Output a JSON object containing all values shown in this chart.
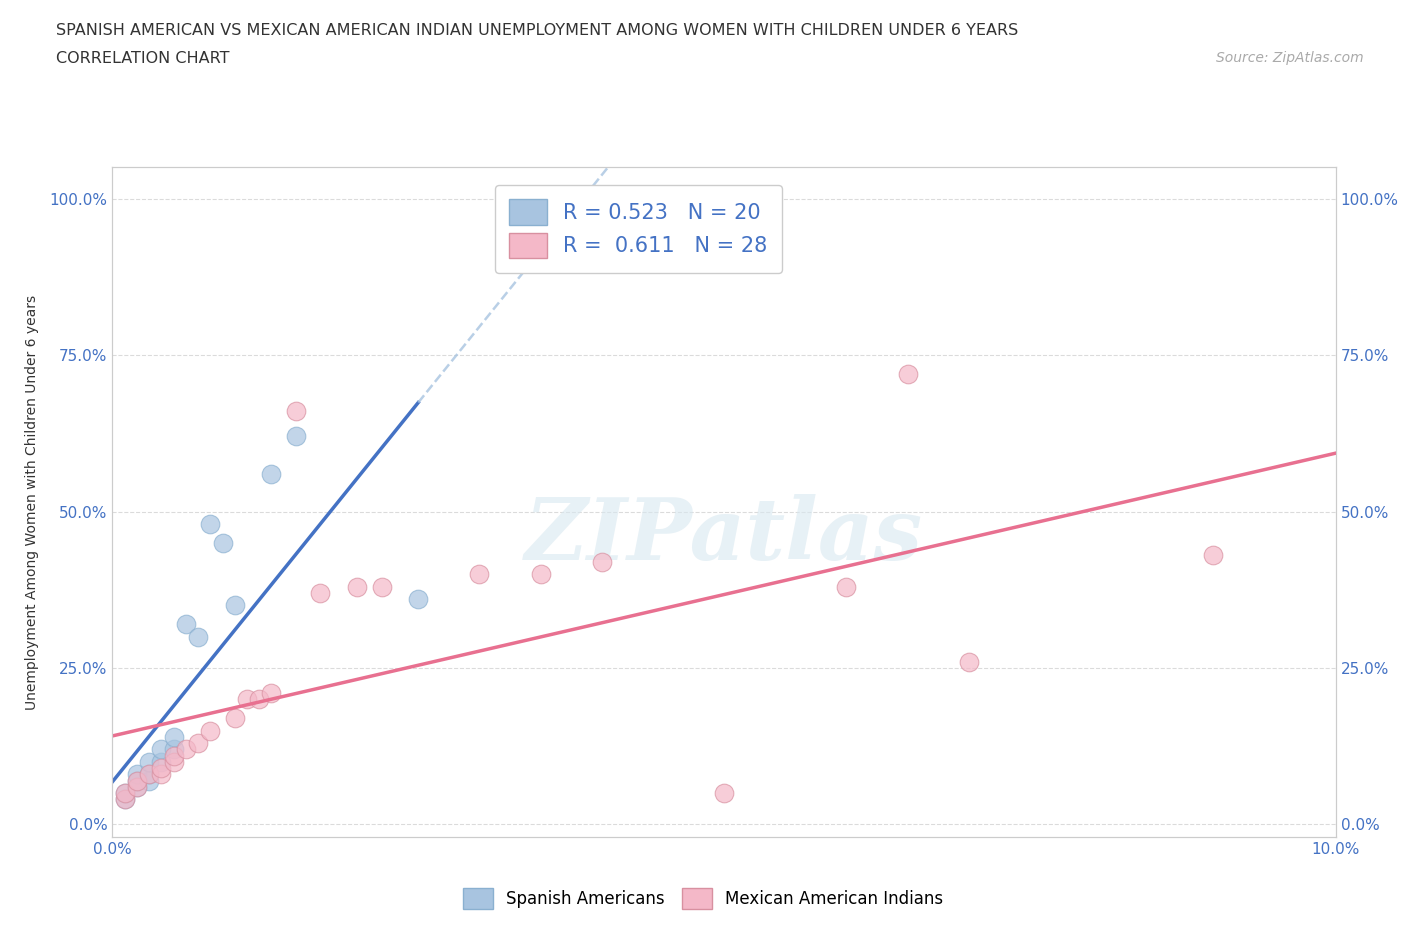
{
  "title": "SPANISH AMERICAN VS MEXICAN AMERICAN INDIAN UNEMPLOYMENT AMONG WOMEN WITH CHILDREN UNDER 6 YEARS",
  "subtitle": "CORRELATION CHART",
  "source": "Source: ZipAtlas.com",
  "ylabel": "Unemployment Among Women with Children Under 6 years",
  "xlim": [
    0,
    0.1
  ],
  "ylim": [
    -0.02,
    1.05
  ],
  "yticks": [
    0.0,
    0.25,
    0.5,
    0.75,
    1.0
  ],
  "ytick_labels": [
    "0.0%",
    "25.0%",
    "50.0%",
    "75.0%",
    "100.0%"
  ],
  "xticks": [
    0.0,
    0.01,
    0.02,
    0.03,
    0.04,
    0.05,
    0.06,
    0.07,
    0.08,
    0.09,
    0.1
  ],
  "xtick_labels": [
    "0.0%",
    "",
    "",
    "",
    "",
    "",
    "",
    "",
    "",
    "",
    "10.0%"
  ],
  "spanish_R": "0.523",
  "spanish_N": "20",
  "mexican_R": "0.611",
  "mexican_N": "28",
  "spanish_color": "#a8c4e0",
  "mexican_color": "#f4b8c8",
  "spanish_line_color": "#4472c4",
  "mexican_line_color": "#e87090",
  "dashed_line_color": "#a8c4e0",
  "legend_label_spanish": "Spanish Americans",
  "legend_label_mexican": "Mexican American Indians",
  "spanish_points": [
    [
      0.001,
      0.04
    ],
    [
      0.001,
      0.05
    ],
    [
      0.002,
      0.06
    ],
    [
      0.002,
      0.07
    ],
    [
      0.002,
      0.08
    ],
    [
      0.003,
      0.07
    ],
    [
      0.003,
      0.08
    ],
    [
      0.003,
      0.1
    ],
    [
      0.004,
      0.1
    ],
    [
      0.004,
      0.12
    ],
    [
      0.005,
      0.12
    ],
    [
      0.005,
      0.14
    ],
    [
      0.006,
      0.32
    ],
    [
      0.007,
      0.3
    ],
    [
      0.008,
      0.48
    ],
    [
      0.009,
      0.45
    ],
    [
      0.01,
      0.35
    ],
    [
      0.013,
      0.56
    ],
    [
      0.015,
      0.62
    ],
    [
      0.025,
      0.36
    ]
  ],
  "mexican_points": [
    [
      0.001,
      0.04
    ],
    [
      0.001,
      0.05
    ],
    [
      0.002,
      0.06
    ],
    [
      0.002,
      0.07
    ],
    [
      0.003,
      0.08
    ],
    [
      0.004,
      0.08
    ],
    [
      0.004,
      0.09
    ],
    [
      0.005,
      0.1
    ],
    [
      0.005,
      0.11
    ],
    [
      0.006,
      0.12
    ],
    [
      0.007,
      0.13
    ],
    [
      0.008,
      0.15
    ],
    [
      0.01,
      0.17
    ],
    [
      0.011,
      0.2
    ],
    [
      0.012,
      0.2
    ],
    [
      0.013,
      0.21
    ],
    [
      0.015,
      0.66
    ],
    [
      0.017,
      0.37
    ],
    [
      0.02,
      0.38
    ],
    [
      0.022,
      0.38
    ],
    [
      0.03,
      0.4
    ],
    [
      0.035,
      0.4
    ],
    [
      0.04,
      0.42
    ],
    [
      0.05,
      0.05
    ],
    [
      0.06,
      0.38
    ],
    [
      0.065,
      0.72
    ],
    [
      0.07,
      0.26
    ],
    [
      0.09,
      0.43
    ]
  ],
  "background_color": "#ffffff",
  "grid_color": "#d8d8d8"
}
